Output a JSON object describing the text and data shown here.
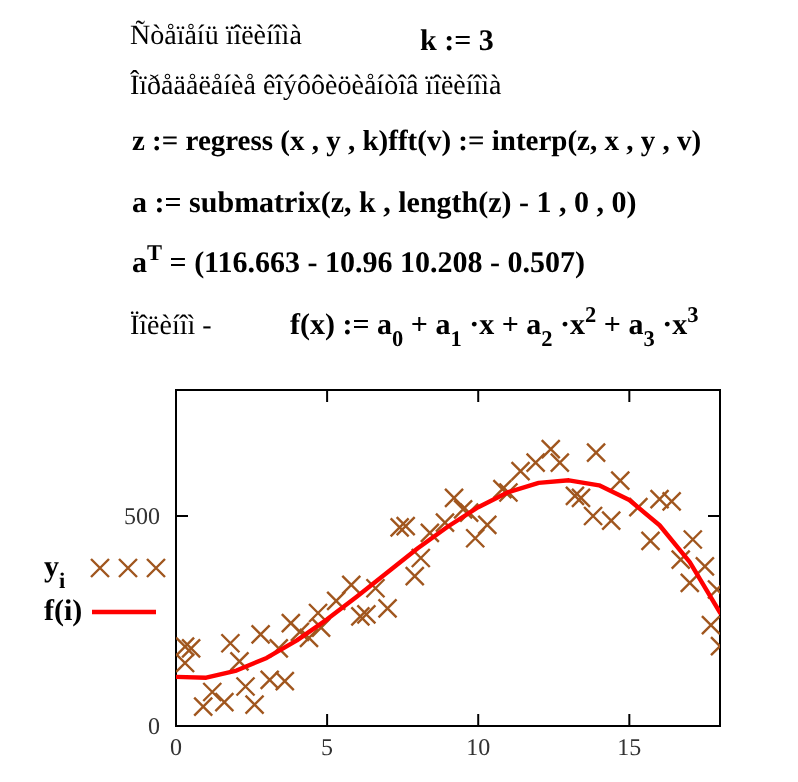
{
  "chart_data": {
    "type": "scatter",
    "annotations": [
      "Ñòåïåíü ïîëèíîìà",
      "k := 3",
      "Îïðåäåëåíèå êîýôôèöèåíòîâ ïîëèíîìà",
      "z := regress (x , y , k)fft(v) := interp(z, x , y , v)",
      "a := submatrix(z, k , length(z) -  1 , 0 , 0)",
      "a$^{T}$ = (116.663  - 10.96  10.208  - 0.507)",
      "Ïîëèíîì -",
      "f(x) := a$_{0}$ + a$_{1}$ ·x + a$_{2}$ ·x$^{2}$ + a$_{3}$ ·x$^{3}$"
    ],
    "xlim": [
      0,
      18
    ],
    "xticks": [
      0,
      5,
      10,
      15
    ],
    "ylim": [
      0,
      800
    ],
    "yticks": [
      0,
      500
    ],
    "grid": false,
    "legend": "left",
    "series": [
      {
        "name": "y$_{i}$",
        "marker": "cross",
        "color": "#a0561e",
        "x": [
          0.3,
          0.5,
          0.3,
          0.9,
          1.2,
          1.6,
          1.8,
          2.1,
          2.3,
          2.6,
          2.8,
          3.1,
          3.4,
          3.6,
          3.8,
          4.1,
          4.4,
          4.7,
          4.8,
          5.3,
          5.8,
          6.1,
          6.3,
          6.6,
          7.0,
          7.4,
          7.6,
          7.9,
          8.1,
          8.4,
          8.9,
          9.2,
          9.5,
          9.7,
          9.9,
          10.3,
          10.8,
          11.0,
          11.4,
          11.9,
          12.4,
          12.7,
          13.2,
          13.4,
          13.8,
          13.9,
          14.4,
          14.7,
          15.3,
          15.7,
          16.0,
          16.4,
          17.1,
          16.7,
          17.0,
          17.5,
          17.7,
          17.9,
          18.0
        ],
        "values": [
          189,
          185,
          150,
          46,
          81,
          57,
          197,
          154,
          94,
          51,
          218,
          110,
          185,
          107,
          245,
          224,
          210,
          269,
          234,
          298,
          336,
          261,
          266,
          328,
          280,
          473,
          476,
          357,
          400,
          460,
          484,
          543,
          516,
          508,
          447,
          479,
          564,
          556,
          607,
          627,
          659,
          627,
          548,
          543,
          500,
          651,
          489,
          584,
          521,
          441,
          540,
          535,
          444,
          396,
          341,
          380,
          240,
          325,
          190
        ]
      },
      {
        "name": "f(i)",
        "type": "line",
        "color": "#ff0000",
        "line_style": "solid",
        "marker": "none",
        "x": [
          0,
          1,
          2,
          3,
          4,
          5,
          6,
          7,
          8,
          9,
          10,
          11,
          12,
          13,
          14,
          15,
          16,
          17,
          18
        ],
        "values": [
          117,
          115,
          132,
          162,
          204,
          254,
          309,
          366,
          423,
          475,
          521,
          557,
          579,
          585,
          573,
          538,
          478,
          390,
          270
        ]
      }
    ]
  }
}
